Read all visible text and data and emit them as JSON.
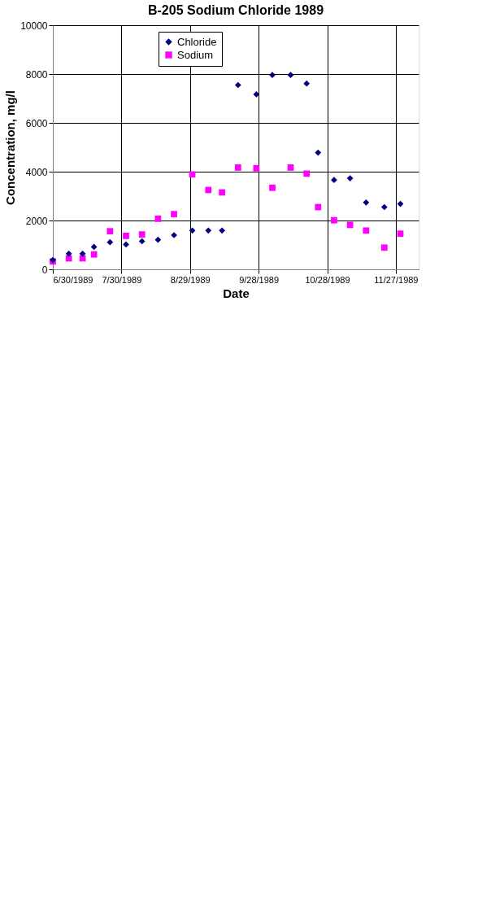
{
  "chart_data": {
    "type": "scatter",
    "title": "B-205 Sodium Chloride 1989",
    "xlabel": "Date",
    "ylabel": "Concentration, mg/l",
    "x": [
      "1989-06-30",
      "1989-07-07",
      "1989-07-13",
      "1989-07-18",
      "1989-07-25",
      "1989-08-01",
      "1989-08-08",
      "1989-08-15",
      "1989-08-22",
      "1989-08-30",
      "1989-09-06",
      "1989-09-12",
      "1989-09-19",
      "1989-09-27",
      "1989-10-04",
      "1989-10-12",
      "1989-10-19",
      "1989-10-24",
      "1989-10-31",
      "1989-11-07",
      "1989-11-14",
      "1989-11-22",
      "1989-11-29"
    ],
    "series": [
      {
        "name": "Chloride",
        "color": "#000080",
        "marker": "diamond",
        "values": [
          380,
          640,
          640,
          920,
          1110,
          1020,
          1150,
          1210,
          1400,
          1590,
          1590,
          1590,
          7550,
          7170,
          7960,
          7960,
          7610,
          4780,
          3660,
          3730,
          2740,
          2550,
          2680
        ]
      },
      {
        "name": "Sodium",
        "color": "#ff00ff",
        "marker": "square",
        "values": [
          320,
          450,
          450,
          610,
          1560,
          1370,
          1430,
          2070,
          2260,
          3890,
          3250,
          3150,
          4170,
          4140,
          3340,
          4170,
          3920,
          2550,
          2010,
          1820,
          1590,
          890,
          1460
        ]
      }
    ],
    "xlim": [
      "1989-06-30",
      "1989-12-07"
    ],
    "xticks": [
      {
        "value": "1989-06-30",
        "label": "6/30/1989"
      },
      {
        "value": "1989-07-30",
        "label": "7/30/1989"
      },
      {
        "value": "1989-08-29",
        "label": "8/29/1989"
      },
      {
        "value": "1989-09-28",
        "label": "9/28/1989"
      },
      {
        "value": "1989-10-28",
        "label": "10/28/1989"
      },
      {
        "value": "1989-11-27",
        "label": "11/27/1989"
      }
    ],
    "ylim": [
      0,
      10000
    ],
    "yticks": [
      0,
      2000,
      4000,
      6000,
      8000,
      10000
    ],
    "grid": true,
    "legend": "top"
  }
}
